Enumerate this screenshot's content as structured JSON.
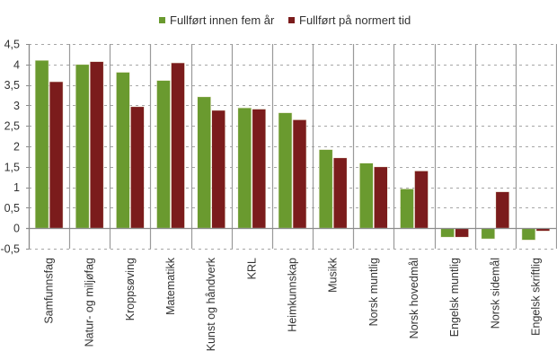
{
  "chart_data": {
    "type": "bar",
    "title": "",
    "xlabel": "",
    "ylabel": "",
    "ylim": [
      -0.5,
      4.5
    ],
    "yticks": [
      -0.5,
      0,
      0.5,
      1,
      1.5,
      2,
      2.5,
      3,
      3.5,
      4,
      4.5
    ],
    "ytick_labels": [
      "-0,5",
      "0",
      "0,5",
      "1",
      "1,5",
      "2",
      "2,5",
      "3",
      "3,5",
      "4",
      "4,5"
    ],
    "grid": "horizontal dashed",
    "legend_position": "top",
    "categories": [
      "Samfunnsfag",
      "Natur- og miljøfag",
      "Kroppsøving",
      "Matematikk",
      "Kunst og håndverk",
      "KRL",
      "Heimkunnskap",
      "Musikk",
      "Norsk muntlig",
      "Norsk hovedmål",
      "Engelsk muntlig",
      "Norsk sidemål",
      "Engelsk skriftlig"
    ],
    "series": [
      {
        "name": "Fullført innen fem år",
        "color": "#6a9a2f",
        "values": [
          4.1,
          4.0,
          3.81,
          3.61,
          3.21,
          2.94,
          2.82,
          1.92,
          1.59,
          0.96,
          -0.22,
          -0.26,
          -0.29
        ]
      },
      {
        "name": "Fullført på normert tid",
        "color": "#7b1c1c",
        "values": [
          3.58,
          4.07,
          2.97,
          4.04,
          2.88,
          2.91,
          2.65,
          1.72,
          1.5,
          1.4,
          -0.22,
          0.89,
          -0.07
        ]
      }
    ]
  },
  "legend": {
    "items": [
      {
        "label": "Fullført innen fem år",
        "color": "#6a9a2f"
      },
      {
        "label": "Fullført på normert tid",
        "color": "#7b1c1c"
      }
    ]
  }
}
